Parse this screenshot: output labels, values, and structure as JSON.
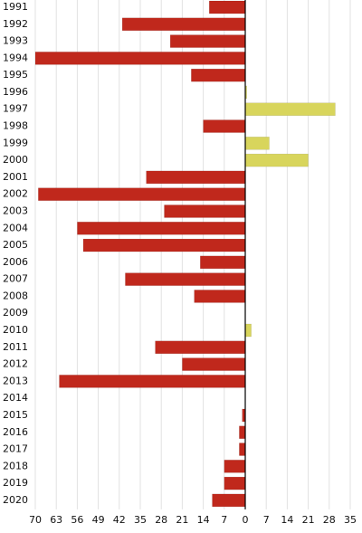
{
  "chart_data": {
    "type": "bar",
    "orientation": "horizontal",
    "categories": [
      "1991",
      "1992",
      "1993",
      "1994",
      "1995",
      "1996",
      "1997",
      "1998",
      "1999",
      "2000",
      "2001",
      "2002",
      "2003",
      "2004",
      "2005",
      "2006",
      "2007",
      "2008",
      "2009",
      "2010",
      "2011",
      "2012",
      "2013",
      "2014",
      "2015",
      "2016",
      "2017",
      "2018",
      "2019",
      "2020"
    ],
    "values": [
      -12,
      -41,
      -25,
      -70,
      -18,
      0.5,
      30,
      -14,
      8,
      21,
      -33,
      -69,
      -27,
      -56,
      -54,
      -15,
      -40,
      -17,
      0,
      2,
      -30,
      -21,
      -62,
      0,
      -1,
      -2,
      -2,
      -7,
      -7,
      -11
    ],
    "color_negative": "#c0281c",
    "color_positive": "#d8d55c",
    "xlim": [
      -70,
      35
    ],
    "xticks": [
      {
        "value": -70,
        "label": "70"
      },
      {
        "value": -63,
        "label": "63"
      },
      {
        "value": -56,
        "label": "56"
      },
      {
        "value": -49,
        "label": "49"
      },
      {
        "value": -42,
        "label": "42"
      },
      {
        "value": -35,
        "label": "35"
      },
      {
        "value": -28,
        "label": "28"
      },
      {
        "value": -21,
        "label": "21"
      },
      {
        "value": -14,
        "label": "14"
      },
      {
        "value": -7,
        "label": "7"
      },
      0,
      7,
      14,
      21,
      28,
      35
    ],
    "grid": true
  }
}
